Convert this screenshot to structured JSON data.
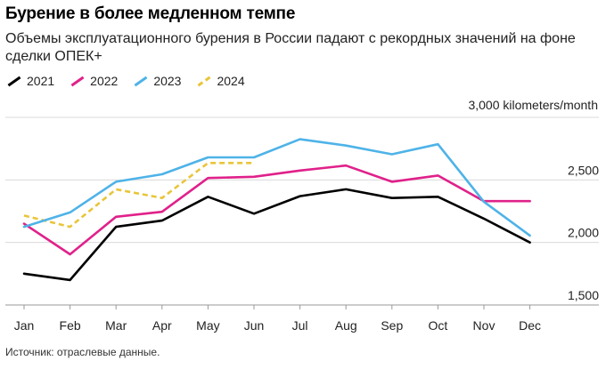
{
  "header": {
    "title": "Бурение в более медленном темпе",
    "subtitle": "Объемы эксплуатационного бурения в России падают с рекордных значений на фоне сделки ОПЕК+"
  },
  "footer": {
    "source": "Источник: отраслевые данные."
  },
  "chart_data": {
    "type": "line",
    "unit_label": "3,000 kilometers/month",
    "categories": [
      "Jan",
      "Feb",
      "Mar",
      "Apr",
      "May",
      "Jun",
      "Jul",
      "Aug",
      "Sep",
      "Oct",
      "Nov",
      "Dec"
    ],
    "yticks": [
      {
        "value": 2500,
        "label": "2,500"
      },
      {
        "value": 2000,
        "label": "2,000"
      },
      {
        "value": 1500,
        "label": "1,500"
      }
    ],
    "ylim": [
      1500,
      3000
    ],
    "legend_position": "top-left",
    "grid": "horizontal",
    "series": [
      {
        "name": "2021",
        "color": "#000000",
        "dashed": false,
        "values": [
          1750,
          1700,
          2125,
          2175,
          2365,
          2230,
          2370,
          2425,
          2355,
          2365,
          2190,
          2000
        ]
      },
      {
        "name": "2022",
        "color": "#e0218a",
        "dashed": false,
        "values": [
          2150,
          1905,
          2205,
          2245,
          2515,
          2525,
          2575,
          2615,
          2485,
          2535,
          2330,
          2330
        ]
      },
      {
        "name": "2023",
        "color": "#4eb3e8",
        "dashed": false,
        "values": [
          2125,
          2240,
          2485,
          2545,
          2680,
          2680,
          2825,
          2775,
          2705,
          2785,
          2325,
          2055
        ]
      },
      {
        "name": "2024",
        "color": "#e9c53a",
        "dashed": true,
        "values": [
          2215,
          2125,
          2425,
          2355,
          2635,
          2635,
          null,
          null,
          null,
          null,
          null,
          null
        ]
      }
    ]
  }
}
